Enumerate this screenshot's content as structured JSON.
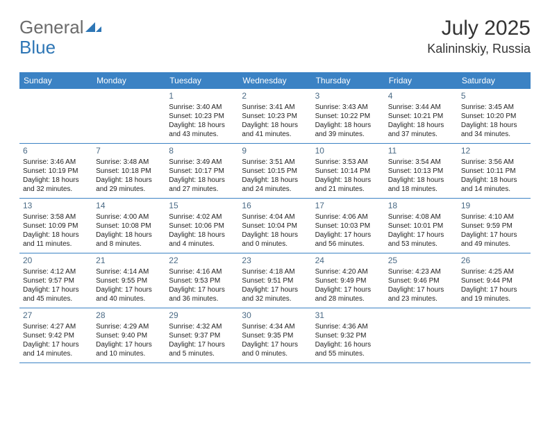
{
  "logo": {
    "gray": "General",
    "blue": "Blue"
  },
  "title": "July 2025",
  "subtitle": "Kalininskiy, Russia",
  "colors": {
    "header_bg": "#3b82c4",
    "header_text": "#ffffff",
    "daynum": "#4a6a85",
    "border": "#3b82c4",
    "logo_gray": "#6b6b6b",
    "logo_blue": "#2e76b5"
  },
  "day_headers": [
    "Sunday",
    "Monday",
    "Tuesday",
    "Wednesday",
    "Thursday",
    "Friday",
    "Saturday"
  ],
  "weeks": [
    [
      null,
      null,
      {
        "n": "1",
        "sr": "3:40 AM",
        "ss": "10:23 PM",
        "dl": "18 hours and 43 minutes."
      },
      {
        "n": "2",
        "sr": "3:41 AM",
        "ss": "10:23 PM",
        "dl": "18 hours and 41 minutes."
      },
      {
        "n": "3",
        "sr": "3:43 AM",
        "ss": "10:22 PM",
        "dl": "18 hours and 39 minutes."
      },
      {
        "n": "4",
        "sr": "3:44 AM",
        "ss": "10:21 PM",
        "dl": "18 hours and 37 minutes."
      },
      {
        "n": "5",
        "sr": "3:45 AM",
        "ss": "10:20 PM",
        "dl": "18 hours and 34 minutes."
      }
    ],
    [
      {
        "n": "6",
        "sr": "3:46 AM",
        "ss": "10:19 PM",
        "dl": "18 hours and 32 minutes."
      },
      {
        "n": "7",
        "sr": "3:48 AM",
        "ss": "10:18 PM",
        "dl": "18 hours and 29 minutes."
      },
      {
        "n": "8",
        "sr": "3:49 AM",
        "ss": "10:17 PM",
        "dl": "18 hours and 27 minutes."
      },
      {
        "n": "9",
        "sr": "3:51 AM",
        "ss": "10:15 PM",
        "dl": "18 hours and 24 minutes."
      },
      {
        "n": "10",
        "sr": "3:53 AM",
        "ss": "10:14 PM",
        "dl": "18 hours and 21 minutes."
      },
      {
        "n": "11",
        "sr": "3:54 AM",
        "ss": "10:13 PM",
        "dl": "18 hours and 18 minutes."
      },
      {
        "n": "12",
        "sr": "3:56 AM",
        "ss": "10:11 PM",
        "dl": "18 hours and 14 minutes."
      }
    ],
    [
      {
        "n": "13",
        "sr": "3:58 AM",
        "ss": "10:09 PM",
        "dl": "18 hours and 11 minutes."
      },
      {
        "n": "14",
        "sr": "4:00 AM",
        "ss": "10:08 PM",
        "dl": "18 hours and 8 minutes."
      },
      {
        "n": "15",
        "sr": "4:02 AM",
        "ss": "10:06 PM",
        "dl": "18 hours and 4 minutes."
      },
      {
        "n": "16",
        "sr": "4:04 AM",
        "ss": "10:04 PM",
        "dl": "18 hours and 0 minutes."
      },
      {
        "n": "17",
        "sr": "4:06 AM",
        "ss": "10:03 PM",
        "dl": "17 hours and 56 minutes."
      },
      {
        "n": "18",
        "sr": "4:08 AM",
        "ss": "10:01 PM",
        "dl": "17 hours and 53 minutes."
      },
      {
        "n": "19",
        "sr": "4:10 AM",
        "ss": "9:59 PM",
        "dl": "17 hours and 49 minutes."
      }
    ],
    [
      {
        "n": "20",
        "sr": "4:12 AM",
        "ss": "9:57 PM",
        "dl": "17 hours and 45 minutes."
      },
      {
        "n": "21",
        "sr": "4:14 AM",
        "ss": "9:55 PM",
        "dl": "17 hours and 40 minutes."
      },
      {
        "n": "22",
        "sr": "4:16 AM",
        "ss": "9:53 PM",
        "dl": "17 hours and 36 minutes."
      },
      {
        "n": "23",
        "sr": "4:18 AM",
        "ss": "9:51 PM",
        "dl": "17 hours and 32 minutes."
      },
      {
        "n": "24",
        "sr": "4:20 AM",
        "ss": "9:49 PM",
        "dl": "17 hours and 28 minutes."
      },
      {
        "n": "25",
        "sr": "4:23 AM",
        "ss": "9:46 PM",
        "dl": "17 hours and 23 minutes."
      },
      {
        "n": "26",
        "sr": "4:25 AM",
        "ss": "9:44 PM",
        "dl": "17 hours and 19 minutes."
      }
    ],
    [
      {
        "n": "27",
        "sr": "4:27 AM",
        "ss": "9:42 PM",
        "dl": "17 hours and 14 minutes."
      },
      {
        "n": "28",
        "sr": "4:29 AM",
        "ss": "9:40 PM",
        "dl": "17 hours and 10 minutes."
      },
      {
        "n": "29",
        "sr": "4:32 AM",
        "ss": "9:37 PM",
        "dl": "17 hours and 5 minutes."
      },
      {
        "n": "30",
        "sr": "4:34 AM",
        "ss": "9:35 PM",
        "dl": "17 hours and 0 minutes."
      },
      {
        "n": "31",
        "sr": "4:36 AM",
        "ss": "9:32 PM",
        "dl": "16 hours and 55 minutes."
      },
      null,
      null
    ]
  ],
  "labels": {
    "sunrise": "Sunrise:",
    "sunset": "Sunset:",
    "daylight": "Daylight:"
  }
}
